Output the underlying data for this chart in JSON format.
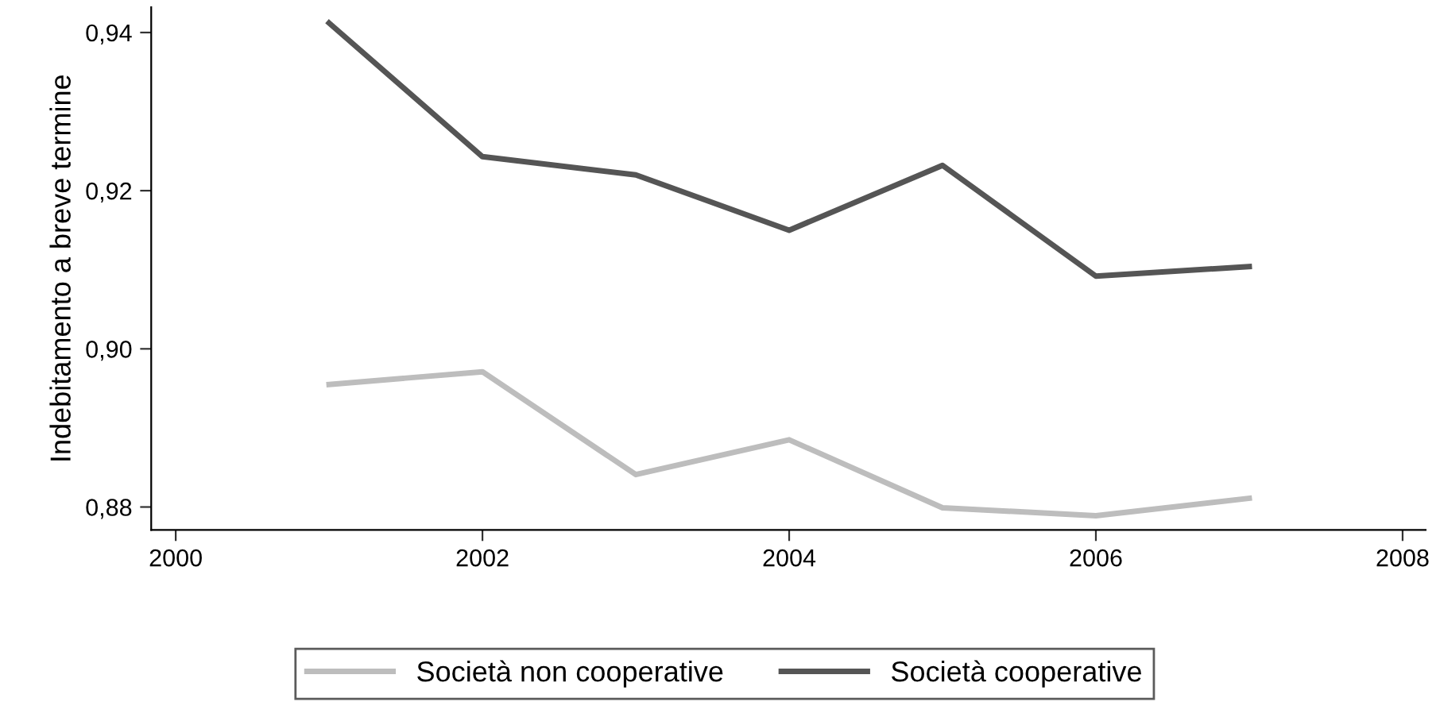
{
  "chart_data": {
    "type": "line",
    "ylabel": "Indebitamento a breve termine",
    "x": [
      2001,
      2002,
      2003,
      2004,
      2005,
      2006,
      2007
    ],
    "series": [
      {
        "name": "Società non cooperative",
        "color": "#bdbdbd",
        "values": [
          0.8955,
          0.8971,
          0.8841,
          0.8885,
          0.8799,
          0.8789,
          0.8811
        ]
      },
      {
        "name": "Società cooperative",
        "color": "#555555",
        "values": [
          0.9412,
          0.9243,
          0.922,
          0.915,
          0.9232,
          0.9092,
          0.9104
        ]
      }
    ],
    "xlim": [
      1999.84,
      2008.15
    ],
    "ylim": [
      0.8771,
      0.9432
    ],
    "xticks": [
      2000,
      2002,
      2004,
      2006,
      2008
    ],
    "yticks": [
      {
        "value": 0.88,
        "label": "0,88"
      },
      {
        "value": 0.9,
        "label": "0,90"
      },
      {
        "value": 0.92,
        "label": "0,92"
      },
      {
        "value": 0.94,
        "label": "0,94"
      }
    ],
    "grid": false,
    "legend": "bottom",
    "marker": "none",
    "line_style": "solid"
  }
}
